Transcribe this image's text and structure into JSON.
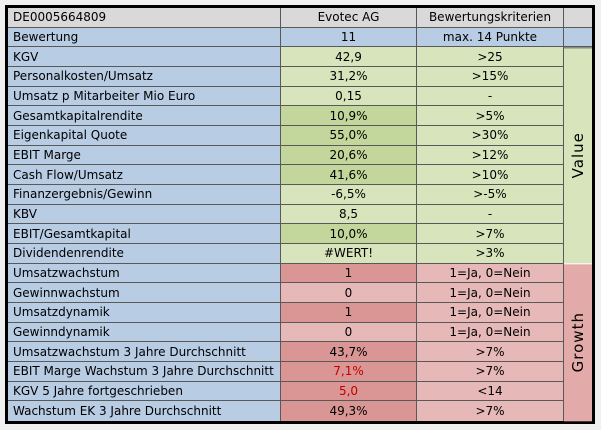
{
  "colors": {
    "header_bg": "#D9D9D9",
    "score_bg": "#B8CCE4",
    "label_bg": "#B8CCE4",
    "green_light": "#D7E4BC",
    "green_dark": "#C3D69B",
    "pink_light": "#E6B9B8",
    "pink_dark": "#D99694",
    "growth_side_bg": "#E2ABA9",
    "red_text": "#C00000",
    "gridline": "#595959"
  },
  "sheet": {
    "rows": [
      {
        "label": "DE0005664809",
        "value": "Evotec AG",
        "criteria": "Bewertungskriterien",
        "kind": "header"
      },
      {
        "label": "Bewertung",
        "value": "11",
        "criteria": "max. 14 Punkte",
        "kind": "score"
      },
      {
        "label": "KGV",
        "value": "42,9",
        "criteria": ">25",
        "kind": "value",
        "hit": false
      },
      {
        "label": "Personalkosten/Umsatz",
        "value": "31,2%",
        "criteria": ">15%",
        "kind": "value",
        "hit": false
      },
      {
        "label": "Umsatz p Mitarbeiter Mio Euro",
        "value": "0,15",
        "criteria": "-",
        "kind": "value",
        "hit": false
      },
      {
        "label": "Gesamtkapitalrendite",
        "value": "10,9%",
        "criteria": ">5%",
        "kind": "value",
        "hit": true
      },
      {
        "label": "Eigenkapital Quote",
        "value": "55,0%",
        "criteria": ">30%",
        "kind": "value",
        "hit": true
      },
      {
        "label": "EBIT Marge",
        "value": "20,6%",
        "criteria": ">12%",
        "kind": "value",
        "hit": true
      },
      {
        "label": "Cash Flow/Umsatz",
        "value": "41,6%",
        "criteria": ">10%",
        "kind": "value",
        "hit": true
      },
      {
        "label": "Finanzergebnis/Gewinn",
        "value": "-6,5%",
        "criteria": ">-5%",
        "kind": "value",
        "hit": false
      },
      {
        "label": "KBV",
        "value": "8,5",
        "criteria": "-",
        "kind": "value",
        "hit": false
      },
      {
        "label": "EBIT/Gesamtkapital",
        "value": "10,0%",
        "criteria": ">7%",
        "kind": "value",
        "hit": true
      },
      {
        "label": "Dividendenrendite",
        "value": "#WERT!",
        "criteria": ">3%",
        "kind": "value",
        "hit": false
      },
      {
        "label": "Umsatzwachstum",
        "value": "1",
        "criteria": "1=Ja, 0=Nein",
        "kind": "growth",
        "hit": true
      },
      {
        "label": "Gewinnwachstum",
        "value": "0",
        "criteria": "1=Ja, 0=Nein",
        "kind": "growth",
        "hit": false
      },
      {
        "label": "Umsatzdynamik",
        "value": "1",
        "criteria": "1=Ja, 0=Nein",
        "kind": "growth",
        "hit": true
      },
      {
        "label": "Gewinndynamik",
        "value": "0",
        "criteria": "1=Ja, 0=Nein",
        "kind": "growth",
        "hit": false
      },
      {
        "label": "Umsatzwachstum 3 Jahre Durchschnitt",
        "value": "43,7%",
        "criteria": ">7%",
        "kind": "growth",
        "hit": true
      },
      {
        "label": "EBIT Marge Wachstum 3 Jahre Durchschnitt",
        "value": "7,1%",
        "criteria": ">7%",
        "kind": "growth",
        "hit": true,
        "red_text": true
      },
      {
        "label": "KGV 5 Jahre fortgeschrieben",
        "value": "5,0",
        "criteria": "<14",
        "kind": "growth",
        "hit": true,
        "red_text": true
      },
      {
        "label": "Wachstum EK 3 Jahre Durchschnitt",
        "value": "49,3%",
        "criteria": ">7%",
        "kind": "growth",
        "hit": true
      }
    ],
    "side": {
      "value_label": "Value",
      "growth_label": "Growth",
      "value_span_rows": 11,
      "growth_span_rows": 8
    }
  }
}
